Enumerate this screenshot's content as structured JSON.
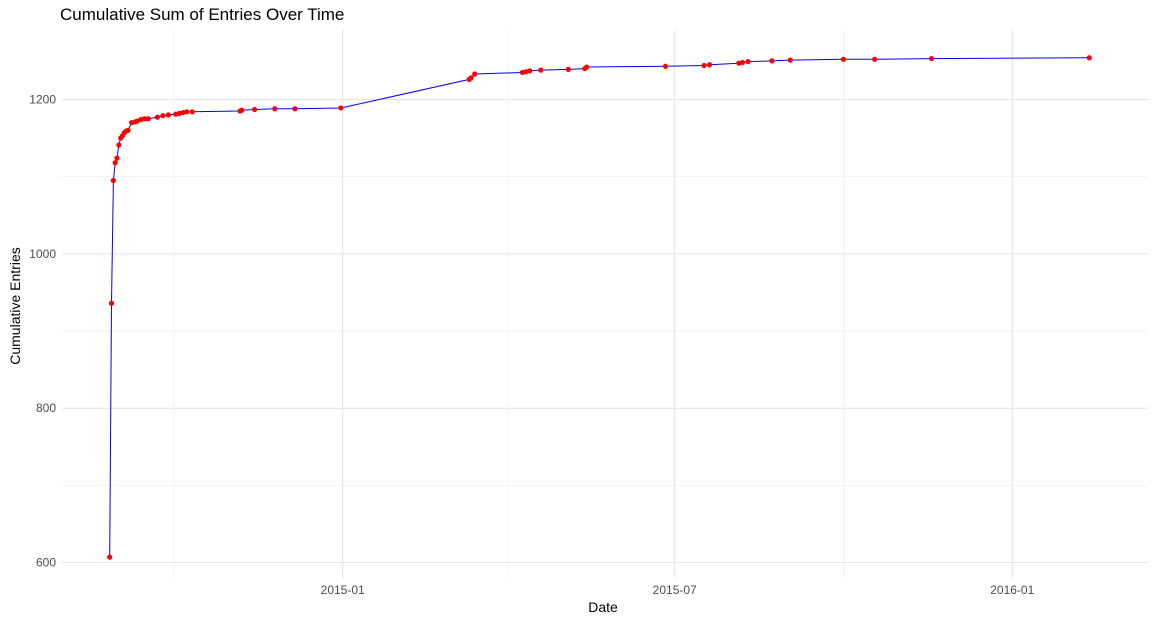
{
  "chart_data": {
    "type": "line",
    "title": "Cumulative Sum of Entries Over Time",
    "xlabel": "Date",
    "ylabel": "Cumulative Entries",
    "x_tick_labels": [
      "2015-01",
      "2015-07",
      "2016-01"
    ],
    "x_ticks": [
      "2015-01-01",
      "2015-07-01",
      "2016-01-01"
    ],
    "x_minor_ticks": [
      "2014-10-01",
      "2015-04-01",
      "2015-10-01"
    ],
    "xlim": [
      "2014-08-01",
      "2016-03-15"
    ],
    "y_ticks": [
      600,
      800,
      1000,
      1200
    ],
    "y_minor_ticks": [
      700,
      900,
      1100
    ],
    "ylim": [
      580,
      1290
    ],
    "grid": true,
    "line_color": "#0000ff",
    "point_color": "#ff0000",
    "series": [
      {
        "x": [
          "2014-08-27",
          "2014-08-28",
          "2014-08-29",
          "2014-08-30",
          "2014-08-31",
          "2014-09-01",
          "2014-09-02",
          "2014-09-03",
          "2014-09-04",
          "2014-09-05",
          "2014-09-06",
          "2014-09-08",
          "2014-09-10",
          "2014-09-11",
          "2014-09-13",
          "2014-09-15",
          "2014-09-17",
          "2014-09-22",
          "2014-09-25",
          "2014-09-28",
          "2014-10-02",
          "2014-10-04",
          "2014-10-06",
          "2014-10-08",
          "2014-10-11",
          "2014-11-06",
          "2014-11-07",
          "2014-11-14",
          "2014-11-25",
          "2014-12-06",
          "2014-12-31",
          "2015-03-11",
          "2015-03-12",
          "2015-03-14",
          "2015-04-09",
          "2015-04-11",
          "2015-04-13",
          "2015-04-19",
          "2015-05-04",
          "2015-05-13",
          "2015-05-14",
          "2015-06-26",
          "2015-07-17",
          "2015-07-20",
          "2015-08-05",
          "2015-08-07",
          "2015-08-10",
          "2015-08-23",
          "2015-09-02",
          "2015-10-01",
          "2015-10-18",
          "2015-11-18",
          "2016-02-12"
        ],
        "y": [
          607,
          936,
          1095,
          1118,
          1124,
          1141,
          1150,
          1153,
          1157,
          1159,
          1160,
          1170,
          1171,
          1172,
          1174,
          1175,
          1175,
          1177,
          1179,
          1180,
          1181,
          1182,
          1183,
          1184,
          1184,
          1185,
          1186,
          1187,
          1188,
          1188,
          1189,
          1226,
          1228,
          1233,
          1235,
          1236,
          1237,
          1238,
          1239,
          1240,
          1242,
          1243,
          1244,
          1245,
          1247,
          1248,
          1249,
          1250,
          1251,
          1252,
          1252,
          1253,
          1254
        ]
      }
    ]
  }
}
